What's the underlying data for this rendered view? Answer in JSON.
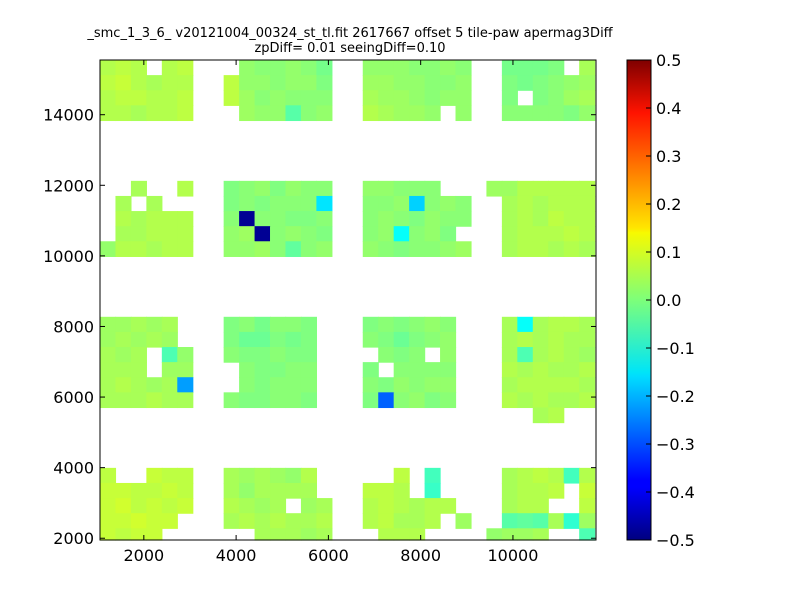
{
  "chart_data": {
    "type": "heatmap",
    "title": "_smc_1_3_6_ v20121004_00324_st_tl.fit 2617667 offset 5 tile-paw apermag3Diff",
    "subtitle": "zpDiff= 0.01 seeingDiff=0.10",
    "xlabel": "",
    "ylabel": "",
    "xlim": [
      1050,
      11800
    ],
    "ylim": [
      1950,
      15550
    ],
    "x_ticks": [
      2000,
      4000,
      6000,
      8000,
      10000
    ],
    "x_tick_labels": [
      "2000",
      "4000",
      "6000",
      "8000",
      "10000"
    ],
    "y_ticks": [
      2000,
      4000,
      6000,
      8000,
      10000,
      12000,
      14000
    ],
    "y_tick_labels": [
      "2000",
      "4000",
      "6000",
      "8000",
      "10000",
      "12000",
      "14000"
    ],
    "grid": false,
    "colormap": "jet",
    "colorbar": {
      "vmin": -0.5,
      "vmax": 0.5,
      "ticks": [
        0.5,
        0.4,
        0.3,
        0.2,
        0.1,
        0.0,
        -0.1,
        -0.2,
        -0.3,
        -0.4,
        -0.5
      ],
      "tick_labels": [
        "0.5",
        "0.4",
        "0.3",
        "0.2",
        "0.1",
        "0.0",
        "−0.1",
        "−0.2",
        "−0.3",
        "−0.4",
        "−0.5"
      ]
    },
    "cell_size": [
      335,
      428
    ],
    "cell_columns": [
      1050,
      1385,
      1720,
      2055,
      2390,
      2725,
      3060,
      3395,
      3730,
      4065,
      4400,
      4735,
      5070,
      5405,
      5740,
      6075,
      6410,
      6745,
      7080,
      7415,
      7750,
      8085,
      8420,
      8755,
      9090,
      9425,
      9760,
      10095,
      10430,
      10765,
      11100,
      11435
    ],
    "cell_rows": [
      15550,
      15122,
      14694,
      14266,
      13838,
      13410,
      12982,
      12554,
      12126,
      11698,
      11270,
      10842,
      10414,
      9986,
      9558,
      9130,
      8702,
      8274,
      7846,
      7418,
      6990,
      6562,
      6134,
      5706,
      5278,
      4850,
      4422,
      3994,
      3566,
      3138,
      2710,
      2282
    ],
    "cell_values_note": "rows top to bottom, columns left to right; null = no data",
    "cells": [
      [
        0.05,
        0.06,
        0.05,
        null,
        0.05,
        0.06,
        null,
        null,
        null,
        0.02,
        0.01,
        0.01,
        0.02,
        0.01,
        -0.01,
        null,
        null,
        0.02,
        0.02,
        0.02,
        0.01,
        0.01,
        0.02,
        0.01,
        null,
        null,
        -0.01,
        -0.01,
        -0.01,
        0.0,
        null,
        0.04
      ],
      [
        0.06,
        0.07,
        0.05,
        0.04,
        0.05,
        0.05,
        null,
        null,
        0.06,
        0.02,
        0.02,
        0.01,
        0.02,
        0.02,
        0.0,
        null,
        null,
        0.03,
        0.03,
        0.02,
        0.02,
        0.01,
        0.01,
        0.02,
        null,
        null,
        0.0,
        -0.01,
        0.0,
        0.01,
        0.02,
        0.03
      ],
      [
        0.05,
        0.06,
        0.06,
        0.05,
        0.05,
        0.06,
        null,
        null,
        0.06,
        0.03,
        0.01,
        0.02,
        0.01,
        0.01,
        0.01,
        null,
        null,
        0.04,
        0.03,
        0.03,
        0.02,
        0.01,
        0.02,
        0.02,
        null,
        null,
        0.0,
        null,
        0.0,
        0.01,
        0.03,
        0.04
      ],
      [
        0.05,
        0.05,
        0.04,
        0.05,
        0.05,
        0.06,
        null,
        null,
        null,
        0.03,
        0.02,
        0.02,
        -0.04,
        0.01,
        0.02,
        null,
        null,
        0.05,
        0.04,
        0.03,
        0.03,
        0.02,
        null,
        0.02,
        null,
        null,
        0.01,
        0.01,
        0.01,
        0.01,
        0.0,
        0.02
      ],
      [
        null,
        null,
        null,
        null,
        null,
        null,
        null,
        null,
        null,
        null,
        null,
        null,
        null,
        null,
        null,
        null,
        null,
        null,
        null,
        null,
        null,
        null,
        null,
        null,
        null,
        null,
        null,
        null,
        null,
        null,
        null,
        null
      ],
      [
        null,
        null,
        null,
        null,
        null,
        null,
        null,
        null,
        null,
        null,
        null,
        null,
        null,
        null,
        null,
        null,
        null,
        null,
        null,
        null,
        null,
        null,
        null,
        null,
        null,
        null,
        null,
        null,
        null,
        null,
        null,
        null
      ],
      [
        null,
        null,
        null,
        null,
        null,
        null,
        null,
        null,
        null,
        null,
        null,
        null,
        null,
        null,
        null,
        null,
        null,
        null,
        null,
        null,
        null,
        null,
        null,
        null,
        null,
        null,
        null,
        null,
        null,
        null,
        null,
        null
      ],
      [
        null,
        null,
        null,
        null,
        null,
        null,
        null,
        null,
        null,
        null,
        null,
        null,
        null,
        null,
        null,
        null,
        null,
        null,
        null,
        null,
        null,
        null,
        null,
        null,
        null,
        null,
        null,
        null,
        null,
        null,
        null,
        null
      ],
      [
        null,
        null,
        0.04,
        null,
        null,
        0.05,
        null,
        null,
        0.0,
        0.01,
        0.02,
        0.0,
        0.02,
        0.01,
        0.01,
        null,
        null,
        0.02,
        0.02,
        0.01,
        0.01,
        0.01,
        null,
        null,
        null,
        0.03,
        0.03,
        0.05,
        0.05,
        0.05,
        0.05,
        0.05
      ],
      [
        null,
        0.04,
        null,
        0.04,
        null,
        null,
        null,
        null,
        0.0,
        0.01,
        0.0,
        0.01,
        0.01,
        0.01,
        -0.15,
        null,
        null,
        0.01,
        0.01,
        0.02,
        -0.17,
        0.01,
        0.02,
        0.01,
        null,
        null,
        0.04,
        0.05,
        0.04,
        0.05,
        0.05,
        0.05
      ],
      [
        null,
        0.05,
        0.04,
        0.05,
        0.05,
        0.05,
        null,
        null,
        0.01,
        -0.48,
        0.01,
        0.01,
        0.0,
        0.0,
        0.01,
        null,
        null,
        0.01,
        0.02,
        0.01,
        0.0,
        0.02,
        0.01,
        0.01,
        null,
        null,
        0.04,
        0.05,
        0.04,
        0.06,
        0.05,
        0.05
      ],
      [
        null,
        0.04,
        0.04,
        0.05,
        0.05,
        0.05,
        null,
        null,
        0.02,
        0.03,
        -0.48,
        0.01,
        0.02,
        0.01,
        0.0,
        null,
        null,
        0.01,
        0.02,
        -0.12,
        0.01,
        0.02,
        0.0,
        null,
        null,
        null,
        0.04,
        0.05,
        0.05,
        0.05,
        0.06,
        0.05
      ],
      [
        0.02,
        0.05,
        0.05,
        0.04,
        0.05,
        0.05,
        null,
        null,
        0.02,
        0.02,
        0.03,
        0.01,
        -0.03,
        0.01,
        0.02,
        null,
        null,
        0.02,
        0.01,
        0.0,
        0.01,
        0.01,
        0.02,
        0.03,
        null,
        null,
        0.04,
        0.05,
        0.05,
        0.04,
        0.05,
        0.04
      ],
      [
        null,
        null,
        null,
        null,
        null,
        null,
        null,
        null,
        null,
        null,
        null,
        null,
        null,
        null,
        null,
        null,
        null,
        null,
        null,
        null,
        null,
        null,
        null,
        null,
        null,
        null,
        null,
        null,
        null,
        null,
        null,
        null
      ],
      [
        null,
        null,
        null,
        null,
        null,
        null,
        null,
        null,
        null,
        null,
        null,
        null,
        null,
        null,
        null,
        null,
        null,
        null,
        null,
        null,
        null,
        null,
        null,
        null,
        null,
        null,
        null,
        null,
        null,
        null,
        null,
        null
      ],
      [
        null,
        null,
        null,
        null,
        null,
        null,
        null,
        null,
        null,
        null,
        null,
        null,
        null,
        null,
        null,
        null,
        null,
        null,
        null,
        null,
        null,
        null,
        null,
        null,
        null,
        null,
        null,
        null,
        null,
        null,
        null,
        null
      ],
      [
        null,
        null,
        null,
        null,
        null,
        null,
        null,
        null,
        null,
        null,
        null,
        null,
        null,
        null,
        null,
        null,
        null,
        null,
        null,
        null,
        null,
        null,
        null,
        null,
        null,
        null,
        null,
        null,
        null,
        null,
        null,
        null
      ],
      [
        0.03,
        0.03,
        0.04,
        0.03,
        0.04,
        null,
        null,
        null,
        0.0,
        0.01,
        -0.01,
        0.01,
        0.01,
        0.0,
        null,
        null,
        null,
        0.0,
        0.01,
        0.0,
        0.01,
        0.02,
        0.01,
        null,
        null,
        null,
        0.04,
        -0.12,
        0.04,
        0.05,
        0.05,
        0.04
      ],
      [
        0.03,
        0.04,
        0.03,
        0.04,
        0.03,
        null,
        null,
        null,
        0.0,
        -0.02,
        -0.02,
        0.0,
        -0.01,
        0.0,
        null,
        null,
        null,
        0.01,
        0.0,
        -0.02,
        0.0,
        0.01,
        0.02,
        null,
        null,
        null,
        0.04,
        0.05,
        0.04,
        0.05,
        0.04,
        0.04
      ],
      [
        0.04,
        0.03,
        0.04,
        null,
        -0.05,
        0.02,
        null,
        null,
        0.01,
        0.0,
        0.0,
        0.01,
        0.0,
        0.0,
        null,
        null,
        null,
        null,
        0.01,
        0.0,
        0.01,
        null,
        0.02,
        null,
        null,
        null,
        0.04,
        -0.05,
        0.04,
        0.05,
        0.04,
        0.03
      ],
      [
        0.04,
        0.04,
        0.04,
        null,
        0.03,
        0.03,
        null,
        null,
        null,
        0.01,
        0.0,
        0.0,
        0.01,
        0.01,
        null,
        null,
        null,
        0.0,
        null,
        0.01,
        0.01,
        0.01,
        0.01,
        null,
        null,
        null,
        0.05,
        0.04,
        0.05,
        0.04,
        0.04,
        0.05
      ],
      [
        0.04,
        0.05,
        0.04,
        0.03,
        0.04,
        -0.22,
        null,
        null,
        null,
        0.01,
        0.0,
        0.01,
        0.01,
        0.01,
        null,
        null,
        null,
        0.01,
        0.0,
        0.02,
        0.01,
        0.02,
        0.02,
        null,
        null,
        null,
        0.04,
        0.05,
        0.05,
        0.05,
        0.05,
        0.04
      ],
      [
        0.04,
        0.04,
        0.04,
        0.05,
        0.04,
        0.04,
        null,
        null,
        0.01,
        0.0,
        0.0,
        0.01,
        0.01,
        0.0,
        null,
        null,
        null,
        0.0,
        -0.28,
        0.01,
        0.02,
        0.0,
        0.01,
        null,
        null,
        null,
        0.05,
        0.04,
        0.05,
        0.04,
        0.04,
        0.05
      ],
      [
        null,
        null,
        null,
        null,
        null,
        null,
        null,
        null,
        null,
        null,
        null,
        null,
        null,
        null,
        null,
        null,
        null,
        null,
        null,
        null,
        null,
        null,
        null,
        null,
        null,
        null,
        null,
        null,
        0.04,
        0.05,
        null,
        null
      ],
      [
        null,
        null,
        null,
        null,
        null,
        null,
        null,
        null,
        null,
        null,
        null,
        null,
        null,
        null,
        null,
        null,
        null,
        null,
        null,
        null,
        null,
        null,
        null,
        null,
        null,
        null,
        null,
        null,
        null,
        null,
        null,
        null
      ],
      [
        null,
        null,
        null,
        null,
        null,
        null,
        null,
        null,
        null,
        null,
        null,
        null,
        null,
        null,
        null,
        null,
        null,
        null,
        null,
        null,
        null,
        null,
        null,
        null,
        null,
        null,
        null,
        null,
        null,
        null,
        null,
        null
      ],
      [
        null,
        null,
        null,
        null,
        null,
        null,
        null,
        null,
        null,
        null,
        null,
        null,
        null,
        null,
        null,
        null,
        null,
        null,
        null,
        null,
        null,
        null,
        null,
        null,
        null,
        null,
        null,
        null,
        null,
        null,
        null,
        null
      ],
      [
        0.06,
        null,
        null,
        0.07,
        0.06,
        0.06,
        null,
        null,
        0.04,
        0.03,
        0.04,
        0.03,
        0.02,
        0.05,
        null,
        null,
        null,
        null,
        null,
        0.06,
        null,
        -0.06,
        null,
        null,
        null,
        null,
        0.04,
        0.05,
        0.06,
        0.05,
        -0.06,
        0.05
      ],
      [
        0.07,
        0.07,
        0.06,
        0.06,
        0.07,
        0.06,
        null,
        null,
        0.04,
        0.02,
        0.04,
        0.04,
        0.04,
        0.04,
        null,
        null,
        null,
        0.06,
        0.06,
        0.05,
        null,
        -0.07,
        null,
        null,
        null,
        null,
        0.04,
        0.05,
        0.05,
        0.06,
        null,
        0.07
      ],
      [
        0.07,
        0.08,
        0.06,
        0.07,
        0.06,
        0.07,
        null,
        null,
        0.05,
        0.04,
        0.03,
        0.04,
        null,
        0.03,
        0.04,
        null,
        null,
        0.05,
        0.06,
        0.05,
        0.04,
        0.05,
        0.05,
        null,
        null,
        null,
        0.04,
        0.05,
        0.05,
        null,
        null,
        0.06
      ],
      [
        0.07,
        0.07,
        0.08,
        0.07,
        0.07,
        null,
        null,
        null,
        0.04,
        0.05,
        0.04,
        0.05,
        0.04,
        0.04,
        0.05,
        null,
        null,
        0.05,
        0.06,
        0.04,
        0.04,
        0.05,
        null,
        0.03,
        null,
        null,
        -0.04,
        -0.03,
        -0.04,
        0.04,
        -0.08,
        0.03
      ],
      [
        0.07,
        0.06,
        0.07,
        0.07,
        null,
        null,
        null,
        null,
        null,
        null,
        0.04,
        0.04,
        0.04,
        0.03,
        0.04,
        null,
        null,
        null,
        0.05,
        0.05,
        0.05,
        null,
        null,
        null,
        null,
        0.02,
        0.03,
        0.03,
        0.04,
        null,
        null,
        -0.05
      ]
    ]
  }
}
